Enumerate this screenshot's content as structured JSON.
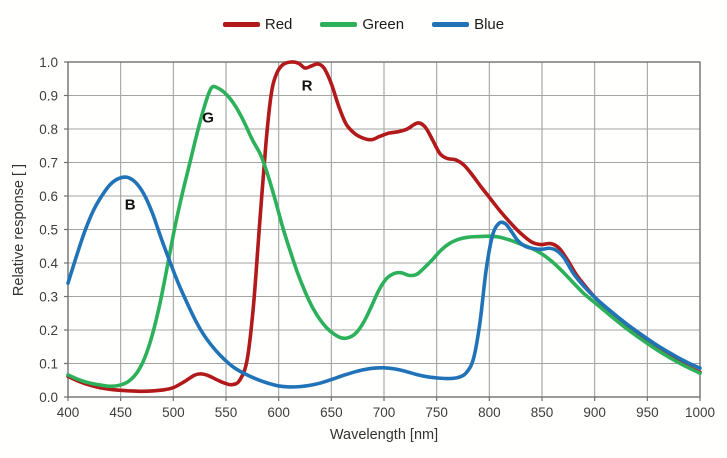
{
  "chart_data": {
    "type": "line",
    "xlabel": "Wavelength [nm]",
    "ylabel": "Relative response [ ]",
    "xlim": [
      400,
      1000
    ],
    "ylim": [
      0.0,
      1.0
    ],
    "grid": true,
    "legend_position": "top-center",
    "x_ticks": [
      400,
      450,
      500,
      550,
      600,
      650,
      700,
      750,
      800,
      850,
      900,
      950,
      1000
    ],
    "y_ticks": [
      "0.0",
      "0.1",
      "0.2",
      "0.3",
      "0.4",
      "0.5",
      "0.6",
      "0.7",
      "0.8",
      "0.9",
      "1.0"
    ],
    "series": [
      {
        "name": "Red",
        "color": "#b2191b",
        "points": [
          [
            400,
            0.062
          ],
          [
            410,
            0.047
          ],
          [
            420,
            0.036
          ],
          [
            430,
            0.028
          ],
          [
            440,
            0.023
          ],
          [
            450,
            0.02
          ],
          [
            460,
            0.018
          ],
          [
            470,
            0.017
          ],
          [
            480,
            0.018
          ],
          [
            490,
            0.021
          ],
          [
            500,
            0.028
          ],
          [
            510,
            0.045
          ],
          [
            520,
            0.065
          ],
          [
            526,
            0.069
          ],
          [
            533,
            0.064
          ],
          [
            541,
            0.052
          ],
          [
            549,
            0.041
          ],
          [
            556,
            0.037
          ],
          [
            563,
            0.05
          ],
          [
            570,
            0.11
          ],
          [
            576,
            0.27
          ],
          [
            582,
            0.52
          ],
          [
            588,
            0.76
          ],
          [
            593,
            0.905
          ],
          [
            598,
            0.965
          ],
          [
            604,
            0.992
          ],
          [
            612,
            1.0
          ],
          [
            619,
            0.996
          ],
          [
            625,
            0.982
          ],
          [
            631,
            0.988
          ],
          [
            637,
            0.994
          ],
          [
            643,
            0.982
          ],
          [
            650,
            0.935
          ],
          [
            657,
            0.868
          ],
          [
            664,
            0.815
          ],
          [
            672,
            0.787
          ],
          [
            680,
            0.773
          ],
          [
            688,
            0.768
          ],
          [
            696,
            0.778
          ],
          [
            705,
            0.788
          ],
          [
            714,
            0.792
          ],
          [
            722,
            0.8
          ],
          [
            732,
            0.818
          ],
          [
            739,
            0.806
          ],
          [
            746,
            0.768
          ],
          [
            753,
            0.727
          ],
          [
            760,
            0.712
          ],
          [
            768,
            0.708
          ],
          [
            776,
            0.692
          ],
          [
            784,
            0.662
          ],
          [
            792,
            0.628
          ],
          [
            800,
            0.596
          ],
          [
            810,
            0.556
          ],
          [
            820,
            0.52
          ],
          [
            830,
            0.488
          ],
          [
            840,
            0.463
          ],
          [
            849,
            0.455
          ],
          [
            858,
            0.458
          ],
          [
            866,
            0.445
          ],
          [
            874,
            0.41
          ],
          [
            882,
            0.368
          ],
          [
            890,
            0.335
          ],
          [
            900,
            0.298
          ],
          [
            910,
            0.268
          ],
          [
            920,
            0.24
          ],
          [
            930,
            0.213
          ],
          [
            940,
            0.189
          ],
          [
            950,
            0.167
          ],
          [
            960,
            0.145
          ],
          [
            970,
            0.125
          ],
          [
            980,
            0.105
          ],
          [
            990,
            0.088
          ],
          [
            1000,
            0.074
          ]
        ]
      },
      {
        "name": "Green",
        "color": "#2cb15a",
        "points": [
          [
            400,
            0.066
          ],
          [
            410,
            0.052
          ],
          [
            420,
            0.042
          ],
          [
            430,
            0.036
          ],
          [
            440,
            0.032
          ],
          [
            450,
            0.036
          ],
          [
            458,
            0.048
          ],
          [
            466,
            0.075
          ],
          [
            473,
            0.118
          ],
          [
            480,
            0.185
          ],
          [
            487,
            0.275
          ],
          [
            494,
            0.385
          ],
          [
            501,
            0.5
          ],
          [
            508,
            0.6
          ],
          [
            515,
            0.69
          ],
          [
            522,
            0.78
          ],
          [
            529,
            0.862
          ],
          [
            536,
            0.922
          ],
          [
            543,
            0.921
          ],
          [
            551,
            0.901
          ],
          [
            559,
            0.868
          ],
          [
            567,
            0.822
          ],
          [
            575,
            0.768
          ],
          [
            583,
            0.722
          ],
          [
            590,
            0.66
          ],
          [
            597,
            0.585
          ],
          [
            604,
            0.505
          ],
          [
            611,
            0.435
          ],
          [
            618,
            0.37
          ],
          [
            625,
            0.315
          ],
          [
            632,
            0.268
          ],
          [
            639,
            0.232
          ],
          [
            646,
            0.205
          ],
          [
            653,
            0.187
          ],
          [
            660,
            0.176
          ],
          [
            667,
            0.178
          ],
          [
            674,
            0.193
          ],
          [
            681,
            0.225
          ],
          [
            688,
            0.27
          ],
          [
            695,
            0.318
          ],
          [
            702,
            0.352
          ],
          [
            709,
            0.368
          ],
          [
            716,
            0.371
          ],
          [
            724,
            0.363
          ],
          [
            731,
            0.366
          ],
          [
            738,
            0.385
          ],
          [
            746,
            0.41
          ],
          [
            754,
            0.438
          ],
          [
            762,
            0.458
          ],
          [
            770,
            0.47
          ],
          [
            780,
            0.477
          ],
          [
            790,
            0.479
          ],
          [
            800,
            0.48
          ],
          [
            810,
            0.477
          ],
          [
            820,
            0.468
          ],
          [
            830,
            0.456
          ],
          [
            840,
            0.444
          ],
          [
            850,
            0.427
          ],
          [
            860,
            0.403
          ],
          [
            870,
            0.373
          ],
          [
            880,
            0.34
          ],
          [
            890,
            0.308
          ],
          [
            900,
            0.282
          ],
          [
            910,
            0.256
          ],
          [
            920,
            0.23
          ],
          [
            930,
            0.205
          ],
          [
            940,
            0.182
          ],
          [
            950,
            0.16
          ],
          [
            960,
            0.139
          ],
          [
            970,
            0.12
          ],
          [
            980,
            0.102
          ],
          [
            990,
            0.086
          ],
          [
            1000,
            0.071
          ]
        ]
      },
      {
        "name": "Blue",
        "color": "#2173b8",
        "points": [
          [
            400,
            0.34
          ],
          [
            408,
            0.42
          ],
          [
            416,
            0.495
          ],
          [
            424,
            0.556
          ],
          [
            432,
            0.6
          ],
          [
            440,
            0.634
          ],
          [
            448,
            0.652
          ],
          [
            456,
            0.656
          ],
          [
            464,
            0.641
          ],
          [
            472,
            0.606
          ],
          [
            480,
            0.55
          ],
          [
            488,
            0.478
          ],
          [
            496,
            0.41
          ],
          [
            504,
            0.345
          ],
          [
            512,
            0.288
          ],
          [
            520,
            0.235
          ],
          [
            528,
            0.19
          ],
          [
            536,
            0.155
          ],
          [
            544,
            0.126
          ],
          [
            552,
            0.102
          ],
          [
            560,
            0.083
          ],
          [
            570,
            0.066
          ],
          [
            580,
            0.052
          ],
          [
            590,
            0.041
          ],
          [
            600,
            0.033
          ],
          [
            610,
            0.03
          ],
          [
            620,
            0.031
          ],
          [
            630,
            0.035
          ],
          [
            640,
            0.042
          ],
          [
            650,
            0.052
          ],
          [
            660,
            0.063
          ],
          [
            670,
            0.073
          ],
          [
            680,
            0.081
          ],
          [
            690,
            0.086
          ],
          [
            700,
            0.087
          ],
          [
            710,
            0.084
          ],
          [
            720,
            0.077
          ],
          [
            730,
            0.068
          ],
          [
            740,
            0.061
          ],
          [
            750,
            0.057
          ],
          [
            760,
            0.055
          ],
          [
            770,
            0.058
          ],
          [
            778,
            0.072
          ],
          [
            785,
            0.115
          ],
          [
            791,
            0.22
          ],
          [
            797,
            0.38
          ],
          [
            803,
            0.482
          ],
          [
            809,
            0.518
          ],
          [
            815,
            0.518
          ],
          [
            821,
            0.494
          ],
          [
            827,
            0.467
          ],
          [
            834,
            0.45
          ],
          [
            842,
            0.443
          ],
          [
            850,
            0.441
          ],
          [
            857,
            0.444
          ],
          [
            864,
            0.437
          ],
          [
            871,
            0.415
          ],
          [
            880,
            0.368
          ],
          [
            890,
            0.33
          ],
          [
            900,
            0.298
          ],
          [
            910,
            0.27
          ],
          [
            920,
            0.244
          ],
          [
            930,
            0.219
          ],
          [
            940,
            0.196
          ],
          [
            950,
            0.174
          ],
          [
            960,
            0.153
          ],
          [
            970,
            0.134
          ],
          [
            980,
            0.116
          ],
          [
            990,
            0.1
          ],
          [
            1000,
            0.086
          ]
        ]
      }
    ],
    "annotations": [
      {
        "text": "B",
        "x": 459,
        "y": 0.575
      },
      {
        "text": "G",
        "x": 533,
        "y": 0.835
      },
      {
        "text": "R",
        "x": 627,
        "y": 0.93
      }
    ]
  },
  "style": {
    "grid_color": "#a3a3a3",
    "frame_color": "#707070",
    "tick_text_color": "#3d3d3d",
    "annotation_color": "#111111"
  }
}
